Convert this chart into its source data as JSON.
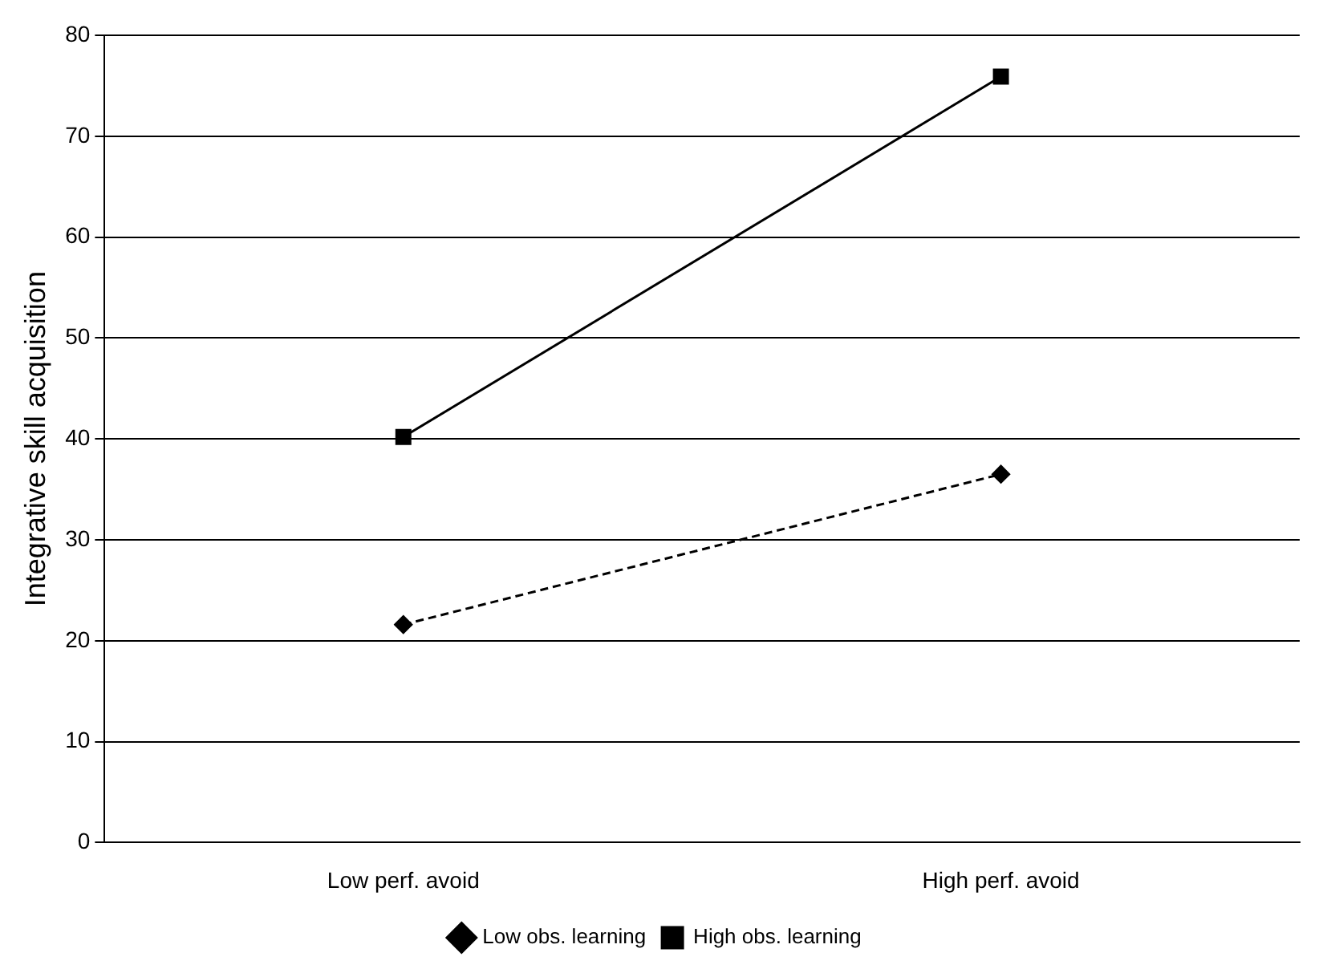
{
  "chart_data": {
    "type": "line",
    "ylabel": "Integrative skill acquisition",
    "categories": [
      "Low perf. avoid",
      "High perf. avoid"
    ],
    "series": [
      {
        "name": "Low obs. learning",
        "color": "#000000",
        "values": [
          21.6,
          36.5
        ],
        "marker": "diamond",
        "line_style": "dashed"
      },
      {
        "name": "High obs. learning",
        "color": "#000000",
        "values": [
          40.2,
          75.9
        ],
        "marker": "square",
        "line_style": "solid"
      }
    ],
    "ylim": [
      0,
      80
    ],
    "yticks": [
      0,
      10,
      20,
      30,
      40,
      50,
      60,
      70,
      80
    ],
    "grid": "y",
    "legend": "bottom"
  }
}
